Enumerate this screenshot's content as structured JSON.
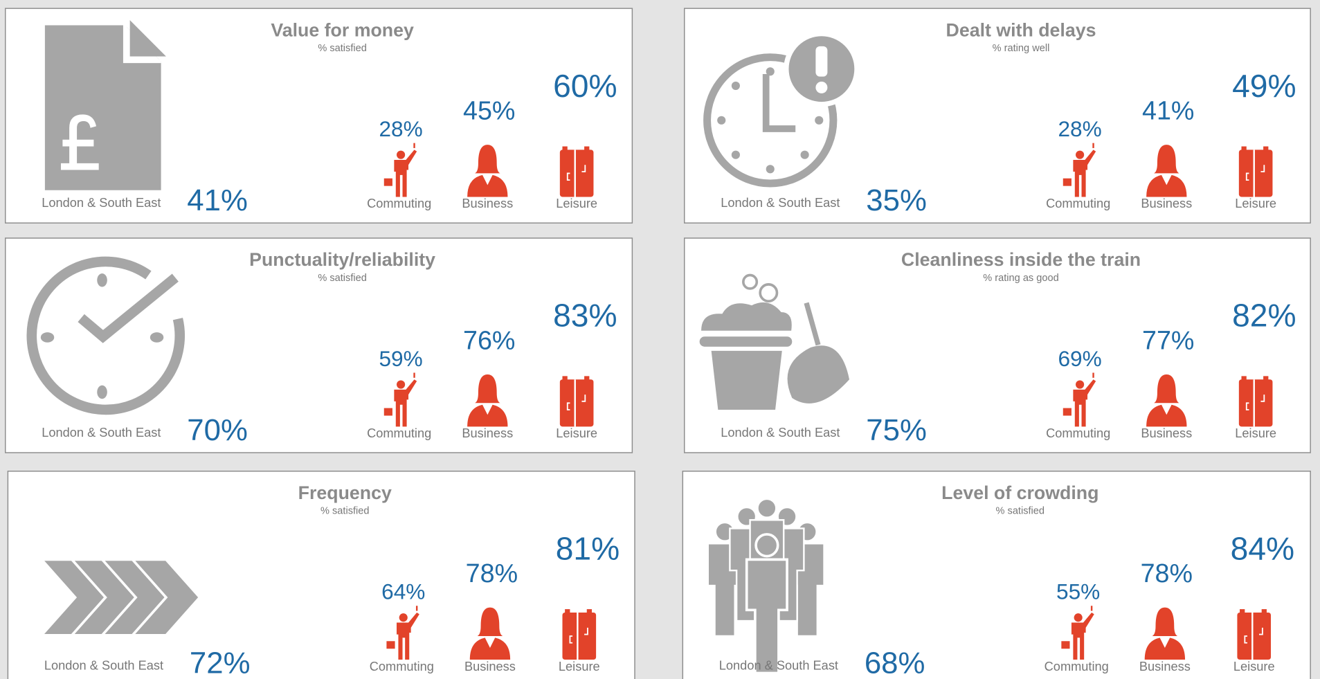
{
  "panels": [
    {
      "title": "Value for money",
      "subtitle": "% satisfied",
      "region": "London & South East",
      "overall": "41%",
      "segments": [
        {
          "label": "Commuting",
          "value": "28%"
        },
        {
          "label": "Business",
          "value": "45%"
        },
        {
          "label": "Leisure",
          "value": "60%"
        }
      ]
    },
    {
      "title": "Dealt with delays",
      "subtitle": "% rating well",
      "region": "London & South East",
      "overall": "35%",
      "segments": [
        {
          "label": "Commuting",
          "value": "28%"
        },
        {
          "label": "Business",
          "value": "41%"
        },
        {
          "label": "Leisure",
          "value": "49%"
        }
      ]
    },
    {
      "title": "Punctuality/reliability",
      "subtitle": "% satisfied",
      "region": "London & South East",
      "overall": "70%",
      "segments": [
        {
          "label": "Commuting",
          "value": "59%"
        },
        {
          "label": "Business",
          "value": "76%"
        },
        {
          "label": "Leisure",
          "value": "83%"
        }
      ]
    },
    {
      "title": "Cleanliness inside the train",
      "subtitle": "% rating as good",
      "region": "London & South East",
      "overall": "75%",
      "segments": [
        {
          "label": "Commuting",
          "value": "69%"
        },
        {
          "label": "Business",
          "value": "77%"
        },
        {
          "label": "Leisure",
          "value": "82%"
        }
      ]
    },
    {
      "title": "Frequency",
      "subtitle": "% satisfied",
      "region": "London & South East",
      "overall": "72%",
      "segments": [
        {
          "label": "Commuting",
          "value": "64%"
        },
        {
          "label": "Business",
          "value": "78%"
        },
        {
          "label": "Leisure",
          "value": "81%"
        }
      ]
    },
    {
      "title": "Level of crowding",
      "subtitle": "% satisfied",
      "region": "London & South East",
      "overall": "68%",
      "segments": [
        {
          "label": "Commuting",
          "value": "55%"
        },
        {
          "label": "Business",
          "value": "78%"
        },
        {
          "label": "Leisure",
          "value": "84%"
        }
      ]
    }
  ]
}
